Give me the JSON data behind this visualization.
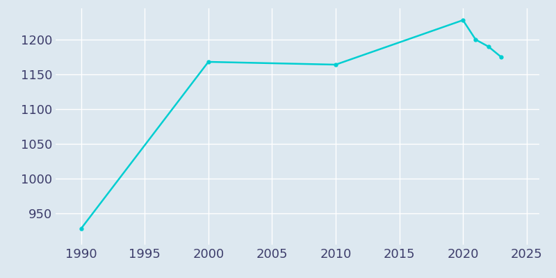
{
  "years": [
    1990,
    2000,
    2010,
    2020,
    2021,
    2022,
    2023
  ],
  "population": [
    928,
    1168,
    1164,
    1228,
    1200,
    1190,
    1175
  ],
  "line_color": "#00CED1",
  "marker": "o",
  "marker_size": 3.5,
  "line_width": 1.8,
  "background_color": "#dde8f0",
  "plot_background_color": "#dde8f0",
  "grid_color": "#ffffff",
  "xlim": [
    1988,
    2026
  ],
  "ylim": [
    905,
    1245
  ],
  "xticks": [
    1990,
    1995,
    2000,
    2005,
    2010,
    2015,
    2020,
    2025
  ],
  "yticks": [
    950,
    1000,
    1050,
    1100,
    1150,
    1200
  ],
  "tick_color": "#3d3d6b",
  "tick_fontsize": 13
}
